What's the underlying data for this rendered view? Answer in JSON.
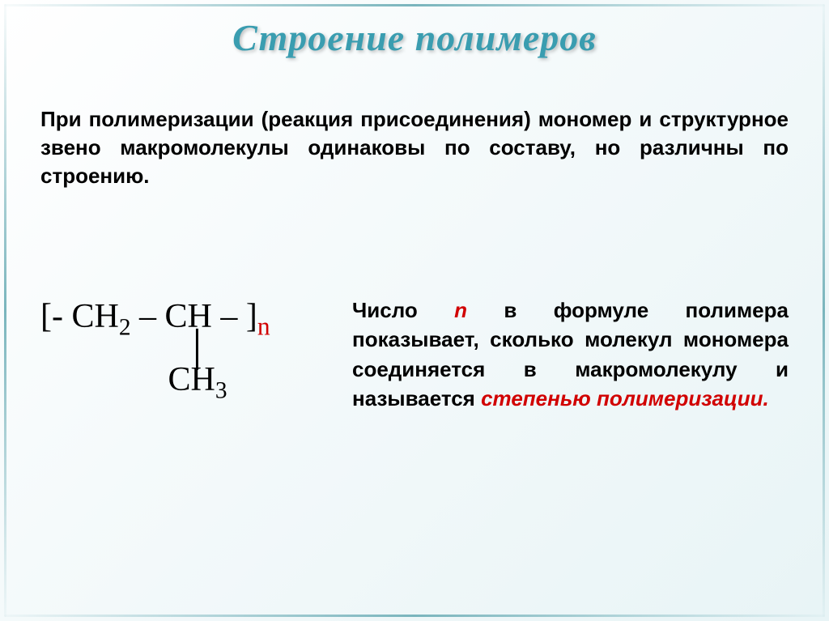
{
  "title": "Строение полимеров",
  "intro": "При полимеризации (реакция присоединения) мономер и структурное звено макромолекулы одинаковы по составу, но различны по строению.",
  "formula": {
    "open": "[- CH",
    "sub2a": "2",
    "mid": " – CH – ]",
    "n": "n",
    "bar_indent": "                 │",
    "ch3_indent": "               CH",
    "sub3": "3"
  },
  "desc": {
    "p1a": "Число ",
    "n": "n",
    "p1b": " в формуле полимера показывает, сколько молекул мономера соединяется в макромолекулу и называется ",
    "term": "степенью полимеризации."
  },
  "colors": {
    "title": "#3a9db0",
    "accent": "#d10000",
    "text": "#000000",
    "frame": "#7ab5bd",
    "bg_start": "#ffffff",
    "bg_end": "#e8f4f6"
  }
}
